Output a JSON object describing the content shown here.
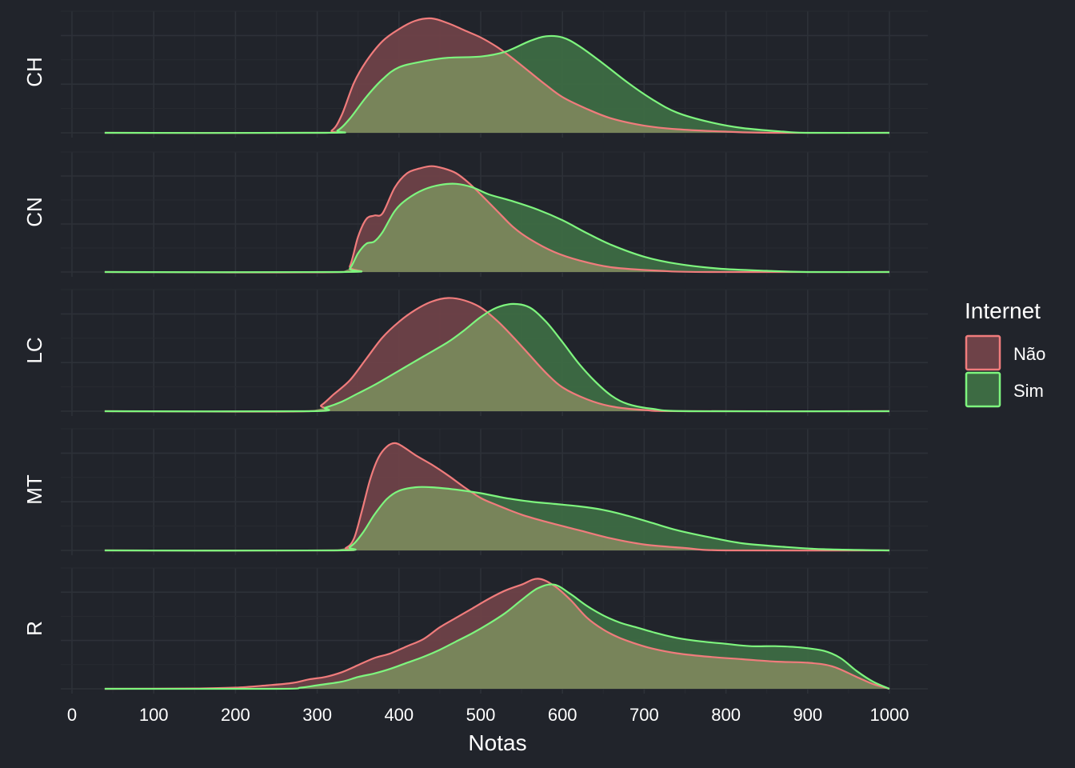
{
  "chart_data": {
    "type": "area",
    "subtype": "faceted density",
    "xlabel": "Notas",
    "ylabel": "",
    "xlim": [
      0,
      1000
    ],
    "x_ticks": [
      "0",
      "100",
      "200",
      "300",
      "400",
      "500",
      "600",
      "700",
      "800",
      "900",
      "1000"
    ],
    "facets": [
      "CH",
      "CN",
      "LC",
      "MT",
      "R"
    ],
    "legend": {
      "title": "Internet",
      "position": "right",
      "entries": [
        "Não",
        "Sim"
      ]
    },
    "grid": true,
    "colors": {
      "background": "#21242b",
      "Não_line": "#f07c7c",
      "Não_fill": "#6e4248",
      "Sim_line": "#7ef57e",
      "Sim_fill": "#3d6b43",
      "overlap_fill": "#78845a"
    },
    "series": [
      {
        "name": "Não",
        "facet": "CH",
        "points": [
          [
            40,
            0
          ],
          [
            300,
            0
          ],
          [
            318,
            0.02
          ],
          [
            330,
            0.15
          ],
          [
            345,
            0.42
          ],
          [
            360,
            0.6
          ],
          [
            380,
            0.77
          ],
          [
            400,
            0.87
          ],
          [
            420,
            0.94
          ],
          [
            440,
            0.96
          ],
          [
            460,
            0.92
          ],
          [
            480,
            0.86
          ],
          [
            500,
            0.8
          ],
          [
            520,
            0.72
          ],
          [
            540,
            0.62
          ],
          [
            560,
            0.51
          ],
          [
            580,
            0.4
          ],
          [
            600,
            0.3
          ],
          [
            630,
            0.2
          ],
          [
            660,
            0.12
          ],
          [
            700,
            0.06
          ],
          [
            740,
            0.03
          ],
          [
            800,
            0.01
          ],
          [
            860,
            0
          ],
          [
            1000,
            0
          ]
        ]
      },
      {
        "name": "Sim",
        "facet": "CH",
        "points": [
          [
            40,
            0
          ],
          [
            310,
            0
          ],
          [
            325,
            0.02
          ],
          [
            340,
            0.12
          ],
          [
            360,
            0.3
          ],
          [
            380,
            0.45
          ],
          [
            400,
            0.55
          ],
          [
            430,
            0.6
          ],
          [
            460,
            0.63
          ],
          [
            500,
            0.64
          ],
          [
            530,
            0.68
          ],
          [
            560,
            0.77
          ],
          [
            580,
            0.81
          ],
          [
            600,
            0.8
          ],
          [
            620,
            0.73
          ],
          [
            650,
            0.58
          ],
          [
            680,
            0.42
          ],
          [
            710,
            0.28
          ],
          [
            740,
            0.17
          ],
          [
            780,
            0.09
          ],
          [
            820,
            0.04
          ],
          [
            870,
            0.01
          ],
          [
            900,
            0
          ],
          [
            1000,
            0
          ]
        ]
      },
      {
        "name": "Não",
        "facet": "CN",
        "points": [
          [
            40,
            0
          ],
          [
            330,
            0
          ],
          [
            340,
            0.05
          ],
          [
            350,
            0.3
          ],
          [
            360,
            0.45
          ],
          [
            370,
            0.48
          ],
          [
            380,
            0.5
          ],
          [
            395,
            0.72
          ],
          [
            410,
            0.84
          ],
          [
            425,
            0.88
          ],
          [
            440,
            0.9
          ],
          [
            455,
            0.88
          ],
          [
            470,
            0.84
          ],
          [
            485,
            0.76
          ],
          [
            500,
            0.66
          ],
          [
            520,
            0.52
          ],
          [
            540,
            0.38
          ],
          [
            560,
            0.28
          ],
          [
            590,
            0.17
          ],
          [
            620,
            0.1
          ],
          [
            660,
            0.04
          ],
          [
            720,
            0.01
          ],
          [
            780,
            0
          ],
          [
            1000,
            0
          ]
        ]
      },
      {
        "name": "Sim",
        "facet": "CN",
        "points": [
          [
            40,
            0
          ],
          [
            330,
            0
          ],
          [
            340,
            0.03
          ],
          [
            350,
            0.16
          ],
          [
            360,
            0.24
          ],
          [
            370,
            0.26
          ],
          [
            380,
            0.34
          ],
          [
            395,
            0.52
          ],
          [
            410,
            0.62
          ],
          [
            430,
            0.7
          ],
          [
            450,
            0.74
          ],
          [
            470,
            0.75
          ],
          [
            490,
            0.72
          ],
          [
            510,
            0.66
          ],
          [
            540,
            0.6
          ],
          [
            570,
            0.53
          ],
          [
            600,
            0.44
          ],
          [
            630,
            0.33
          ],
          [
            660,
            0.23
          ],
          [
            700,
            0.13
          ],
          [
            740,
            0.07
          ],
          [
            790,
            0.03
          ],
          [
            850,
            0.01
          ],
          [
            900,
            0
          ],
          [
            1000,
            0
          ]
        ]
      },
      {
        "name": "Não",
        "facet": "LC",
        "points": [
          [
            40,
            0
          ],
          [
            290,
            0
          ],
          [
            305,
            0.05
          ],
          [
            320,
            0.14
          ],
          [
            340,
            0.26
          ],
          [
            360,
            0.44
          ],
          [
            380,
            0.62
          ],
          [
            400,
            0.75
          ],
          [
            420,
            0.85
          ],
          [
            440,
            0.92
          ],
          [
            460,
            0.95
          ],
          [
            480,
            0.93
          ],
          [
            500,
            0.87
          ],
          [
            520,
            0.76
          ],
          [
            540,
            0.62
          ],
          [
            560,
            0.47
          ],
          [
            580,
            0.32
          ],
          [
            600,
            0.2
          ],
          [
            630,
            0.1
          ],
          [
            660,
            0.04
          ],
          [
            700,
            0.01
          ],
          [
            750,
            0
          ],
          [
            1000,
            0
          ]
        ]
      },
      {
        "name": "Sim",
        "facet": "LC",
        "points": [
          [
            40,
            0
          ],
          [
            290,
            0
          ],
          [
            310,
            0.03
          ],
          [
            330,
            0.08
          ],
          [
            350,
            0.15
          ],
          [
            370,
            0.22
          ],
          [
            400,
            0.34
          ],
          [
            430,
            0.46
          ],
          [
            460,
            0.58
          ],
          [
            480,
            0.68
          ],
          [
            500,
            0.79
          ],
          [
            520,
            0.87
          ],
          [
            540,
            0.9
          ],
          [
            560,
            0.87
          ],
          [
            580,
            0.75
          ],
          [
            600,
            0.58
          ],
          [
            620,
            0.4
          ],
          [
            640,
            0.25
          ],
          [
            660,
            0.13
          ],
          [
            680,
            0.06
          ],
          [
            710,
            0.02
          ],
          [
            760,
            0
          ],
          [
            1000,
            0
          ]
        ]
      },
      {
        "name": "Não",
        "facet": "MT",
        "points": [
          [
            40,
            0
          ],
          [
            320,
            0
          ],
          [
            335,
            0.02
          ],
          [
            345,
            0.1
          ],
          [
            355,
            0.34
          ],
          [
            365,
            0.6
          ],
          [
            375,
            0.78
          ],
          [
            385,
            0.87
          ],
          [
            395,
            0.9
          ],
          [
            405,
            0.87
          ],
          [
            420,
            0.8
          ],
          [
            440,
            0.72
          ],
          [
            460,
            0.63
          ],
          [
            480,
            0.53
          ],
          [
            500,
            0.44
          ],
          [
            520,
            0.38
          ],
          [
            550,
            0.3
          ],
          [
            580,
            0.24
          ],
          [
            620,
            0.17
          ],
          [
            660,
            0.1
          ],
          [
            700,
            0.05
          ],
          [
            750,
            0.02
          ],
          [
            800,
            0
          ],
          [
            1000,
            0
          ]
        ]
      },
      {
        "name": "Sim",
        "facet": "MT",
        "points": [
          [
            40,
            0
          ],
          [
            320,
            0
          ],
          [
            340,
            0.03
          ],
          [
            355,
            0.14
          ],
          [
            370,
            0.3
          ],
          [
            385,
            0.43
          ],
          [
            400,
            0.5
          ],
          [
            420,
            0.53
          ],
          [
            440,
            0.53
          ],
          [
            470,
            0.51
          ],
          [
            500,
            0.48
          ],
          [
            530,
            0.44
          ],
          [
            560,
            0.41
          ],
          [
            590,
            0.39
          ],
          [
            620,
            0.37
          ],
          [
            650,
            0.34
          ],
          [
            680,
            0.29
          ],
          [
            710,
            0.23
          ],
          [
            740,
            0.17
          ],
          [
            780,
            0.11
          ],
          [
            820,
            0.06
          ],
          [
            870,
            0.03
          ],
          [
            920,
            0.01
          ],
          [
            1000,
            0
          ]
        ]
      },
      {
        "name": "Não",
        "facet": "R",
        "points": [
          [
            40,
            0
          ],
          [
            150,
            0.003
          ],
          [
            200,
            0.01
          ],
          [
            240,
            0.03
          ],
          [
            270,
            0.05
          ],
          [
            290,
            0.08
          ],
          [
            310,
            0.1
          ],
          [
            330,
            0.14
          ],
          [
            350,
            0.2
          ],
          [
            370,
            0.26
          ],
          [
            390,
            0.3
          ],
          [
            410,
            0.36
          ],
          [
            430,
            0.42
          ],
          [
            450,
            0.52
          ],
          [
            470,
            0.6
          ],
          [
            490,
            0.68
          ],
          [
            510,
            0.76
          ],
          [
            530,
            0.83
          ],
          [
            550,
            0.88
          ],
          [
            570,
            0.93
          ],
          [
            590,
            0.87
          ],
          [
            610,
            0.75
          ],
          [
            630,
            0.6
          ],
          [
            650,
            0.5
          ],
          [
            670,
            0.43
          ],
          [
            690,
            0.38
          ],
          [
            710,
            0.34
          ],
          [
            740,
            0.3
          ],
          [
            780,
            0.27
          ],
          [
            820,
            0.25
          ],
          [
            860,
            0.23
          ],
          [
            900,
            0.22
          ],
          [
            930,
            0.19
          ],
          [
            960,
            0.1
          ],
          [
            980,
            0.04
          ],
          [
            1000,
            0
          ]
        ]
      },
      {
        "name": "Sim",
        "facet": "R",
        "points": [
          [
            40,
            0
          ],
          [
            250,
            0
          ],
          [
            280,
            0.01
          ],
          [
            300,
            0.03
          ],
          [
            330,
            0.06
          ],
          [
            350,
            0.1
          ],
          [
            370,
            0.13
          ],
          [
            390,
            0.17
          ],
          [
            410,
            0.22
          ],
          [
            430,
            0.27
          ],
          [
            450,
            0.33
          ],
          [
            470,
            0.4
          ],
          [
            490,
            0.47
          ],
          [
            510,
            0.55
          ],
          [
            530,
            0.64
          ],
          [
            550,
            0.75
          ],
          [
            570,
            0.85
          ],
          [
            590,
            0.88
          ],
          [
            610,
            0.8
          ],
          [
            630,
            0.7
          ],
          [
            650,
            0.62
          ],
          [
            670,
            0.56
          ],
          [
            690,
            0.52
          ],
          [
            710,
            0.48
          ],
          [
            740,
            0.43
          ],
          [
            770,
            0.4
          ],
          [
            800,
            0.38
          ],
          [
            830,
            0.36
          ],
          [
            860,
            0.36
          ],
          [
            890,
            0.35
          ],
          [
            920,
            0.32
          ],
          [
            940,
            0.26
          ],
          [
            960,
            0.15
          ],
          [
            980,
            0.06
          ],
          [
            1000,
            0
          ]
        ]
      }
    ]
  }
}
